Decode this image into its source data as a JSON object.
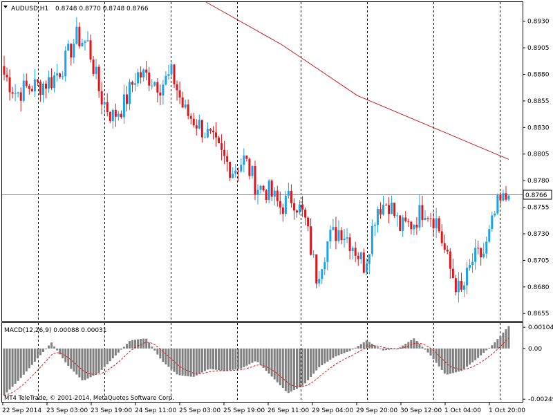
{
  "window": {
    "symbol_label": "AUDUSD,H1",
    "ohlc_label": "0.8748 0.8770 0.8748 0.8766",
    "copyright": "MT4 TeleTrade, © 2001-2014, MetaQuotes Software Corp."
  },
  "colors": {
    "bull": "#1aa3e8",
    "bear": "#e0151a",
    "ma": "#c8181c",
    "grid": "#000000",
    "current_line": "#8c9aa8",
    "histogram": "#808080",
    "signal": "#e0151a"
  },
  "price_axis": {
    "ticks": [
      "0.8930",
      "0.8905",
      "0.8880",
      "0.8855",
      "0.8830",
      "0.8805",
      "0.8780",
      "0.8755",
      "0.8730",
      "0.8705",
      "0.8680",
      "0.8655"
    ],
    "current_price": "0.8766",
    "range": [
      0.8648,
      0.8948
    ]
  },
  "macd": {
    "label": "MACD(12,26,9) 0.00088 0.00031",
    "ticks": [
      "0.00104",
      "0.00",
      "-0.00249"
    ],
    "range": [
      -0.00262,
      0.00125
    ]
  },
  "time_axis": {
    "labels": [
      "22 Sep 2014",
      "23 Sep 03:00",
      "23 Sep 19:00",
      "24 Sep 11:00",
      "25 Sep 03:00",
      "25 Sep 19:00",
      "26 Sep 11:00",
      "29 Sep 04:00",
      "29 Sep 20:00",
      "30 Sep 12:00",
      "1 Oct 04:00",
      "1 Oct 20:00"
    ]
  },
  "chart_data": {
    "type": "candlestick",
    "series_anchor_closes": [
      0.888,
      0.8862,
      0.8868,
      0.887,
      0.8875,
      0.889,
      0.8915,
      0.8908,
      0.886,
      0.884,
      0.8852,
      0.888,
      0.8878,
      0.887,
      0.888,
      0.8845,
      0.8835,
      0.8822,
      0.8805,
      0.879,
      0.88,
      0.8775,
      0.877,
      0.8755,
      0.8765,
      0.8745,
      0.869,
      0.8725,
      0.8735,
      0.872,
      0.87,
      0.8755,
      0.876,
      0.8735,
      0.874,
      0.8755,
      0.8742,
      0.87,
      0.8672,
      0.8705,
      0.8712,
      0.8755,
      0.8766
    ],
    "ma_points": [
      [
        0.4,
        0.8948
      ],
      [
        0.55,
        0.8908
      ],
      [
        0.7,
        0.886
      ],
      [
        0.85,
        0.883
      ],
      [
        1.0,
        0.88
      ]
    ],
    "macd_hist_anchors": [
      -0.0023,
      -0.0015,
      -0.0006,
      0.0003,
      -0.0008,
      -0.0016,
      -0.0012,
      -0.0004,
      0.0004,
      0.0005,
      -0.0006,
      -0.0013,
      -0.0014,
      -0.001,
      -0.0011,
      -0.001,
      -0.0006,
      -0.0014,
      -0.0022,
      -0.0018,
      -0.0009,
      -0.0004,
      -0.0001,
      0.0004,
      -0.0001,
      0.0,
      0.0005,
      -0.0003,
      -0.0013,
      -0.0011,
      -0.0005,
      0.0002,
      0.0011
    ]
  }
}
